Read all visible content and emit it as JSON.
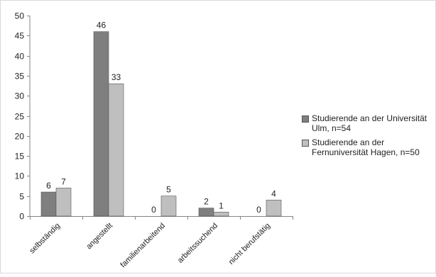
{
  "chart_data": {
    "type": "bar",
    "title": "",
    "xlabel": "",
    "ylabel": "",
    "ylim": [
      0,
      50
    ],
    "yticks": [
      0,
      5,
      10,
      15,
      20,
      25,
      30,
      35,
      40,
      45,
      50
    ],
    "grid": false,
    "legend_position": "right",
    "categories": [
      "selbständig",
      "angestellt",
      "familienarbeitend",
      "arbeitssuchend",
      "nicht berufstätig"
    ],
    "series": [
      {
        "name": "Studierende an der Universität Ulm, n=54",
        "color": "#7f7f7f",
        "values": [
          6,
          46,
          0,
          2,
          0
        ]
      },
      {
        "name": "Studierende an der Fernuniversität Hagen, n=50",
        "color": "#bfbfbf",
        "values": [
          7,
          33,
          5,
          1,
          4
        ]
      }
    ],
    "data_labels": true
  }
}
